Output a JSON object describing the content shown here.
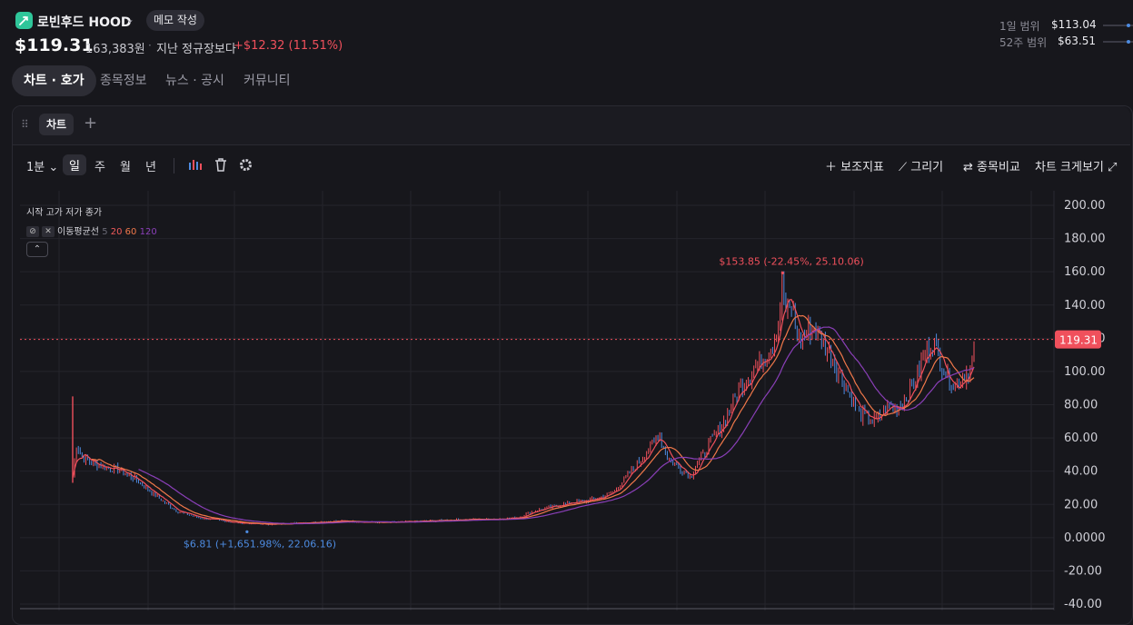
{
  "header": {
    "name": "로빈후드",
    "ticker": "HOOD",
    "memo_button": "메모 작성",
    "price": "$119.31",
    "price_krw": "163,383원",
    "compare_label": "지난 정규장보다",
    "change": "+$12.32 (11.51%)",
    "range_day_label": "1일 범위",
    "range_day_value": "$113.04",
    "range_52w_label": "52주 범위",
    "range_52w_value": "$63.51"
  },
  "tabs": [
    "차트 · 호가",
    "종목정보",
    "뉴스 · 공시",
    "커뮤니티"
  ],
  "chart_panel": {
    "tab_label": "차트",
    "toolbar": {
      "interval": "1분",
      "periods": [
        "일",
        "주",
        "월",
        "년"
      ],
      "selected_period": "일",
      "indicator_btn": "보조지표",
      "draw_btn": "그리기",
      "compare_btn": "종목비교",
      "fullscreen_btn": "차트 크게보기"
    },
    "legend_ohlc": "시작 고가 저가 종가",
    "ma_label": "이동평균선",
    "ma_periods": [
      "5",
      "20",
      "60",
      "120"
    ],
    "ma_colors": [
      "#6a6a76",
      "#f05a5a",
      "#f0784a",
      "#8a3fb8"
    ]
  },
  "chart_data": {
    "type": "line",
    "series_kind": "candlestick with moving averages",
    "y_ticks": [
      "200.00",
      "180.00",
      "160.00",
      "140.00",
      "120.00",
      "100.00",
      "80.00",
      "60.00",
      "40.00",
      "20.00",
      "0.0000",
      "-20.00",
      "-40.00"
    ],
    "ylim": [
      -40,
      200
    ],
    "current_price_label": "119.31",
    "current_price": 119.31,
    "high_annotation": "$153.85 (-22.45%, 25.10.06)",
    "high_value": 153.85,
    "low_annotation": "$6.81 (+1,651.98%, 22.06.16)",
    "low_value": 6.81,
    "up_color": "#f0505c",
    "down_color": "#4d8be0",
    "close_path": [
      [
        0.0,
        36
      ],
      [
        0.005,
        56
      ],
      [
        0.012,
        49
      ],
      [
        0.03,
        44
      ],
      [
        0.06,
        41
      ],
      [
        0.085,
        35
      ],
      [
        0.11,
        26
      ],
      [
        0.14,
        16
      ],
      [
        0.17,
        12
      ],
      [
        0.22,
        9
      ],
      [
        0.26,
        8
      ],
      [
        0.31,
        9
      ],
      [
        0.36,
        10
      ],
      [
        0.42,
        9
      ],
      [
        0.48,
        10
      ],
      [
        0.53,
        11
      ],
      [
        0.56,
        11
      ],
      [
        0.6,
        12
      ],
      [
        0.62,
        16
      ],
      [
        0.65,
        19
      ],
      [
        0.67,
        21
      ],
      [
        0.69,
        22
      ],
      [
        0.71,
        24
      ],
      [
        0.73,
        28
      ],
      [
        0.745,
        36
      ],
      [
        0.76,
        44
      ],
      [
        0.775,
        52
      ],
      [
        0.785,
        58
      ],
      [
        0.79,
        64
      ],
      [
        0.797,
        53
      ],
      [
        0.805,
        47
      ],
      [
        0.815,
        43
      ],
      [
        0.825,
        40
      ],
      [
        0.833,
        36
      ],
      [
        0.84,
        44
      ],
      [
        0.85,
        50
      ],
      [
        0.86,
        58
      ],
      [
        0.87,
        64
      ],
      [
        0.88,
        72
      ],
      [
        0.89,
        82
      ],
      [
        0.9,
        90
      ],
      [
        0.91,
        97
      ],
      [
        0.92,
        103
      ],
      [
        0.93,
        108
      ],
      [
        0.94,
        114
      ],
      [
        0.95,
        126
      ],
      [
        0.957,
        152
      ],
      [
        0.962,
        136
      ],
      [
        0.97,
        140
      ],
      [
        0.975,
        124
      ],
      [
        0.98,
        118
      ],
      [
        0.99,
        124
      ],
      [
        1.0,
        128
      ],
      [
        1.01,
        118
      ],
      [
        1.02,
        112
      ],
      [
        1.03,
        102
      ],
      [
        1.04,
        94
      ],
      [
        1.05,
        84
      ],
      [
        1.06,
        76
      ],
      [
        1.07,
        72
      ],
      [
        1.08,
        70
      ],
      [
        1.09,
        74
      ],
      [
        1.1,
        80
      ],
      [
        1.11,
        78
      ],
      [
        1.12,
        82
      ],
      [
        1.13,
        90
      ],
      [
        1.14,
        100
      ],
      [
        1.15,
        112
      ],
      [
        1.16,
        118
      ],
      [
        1.17,
        106
      ],
      [
        1.18,
        96
      ],
      [
        1.19,
        90
      ],
      [
        1.2,
        98
      ],
      [
        1.21,
        102
      ],
      [
        1.215,
        112
      ]
    ]
  }
}
